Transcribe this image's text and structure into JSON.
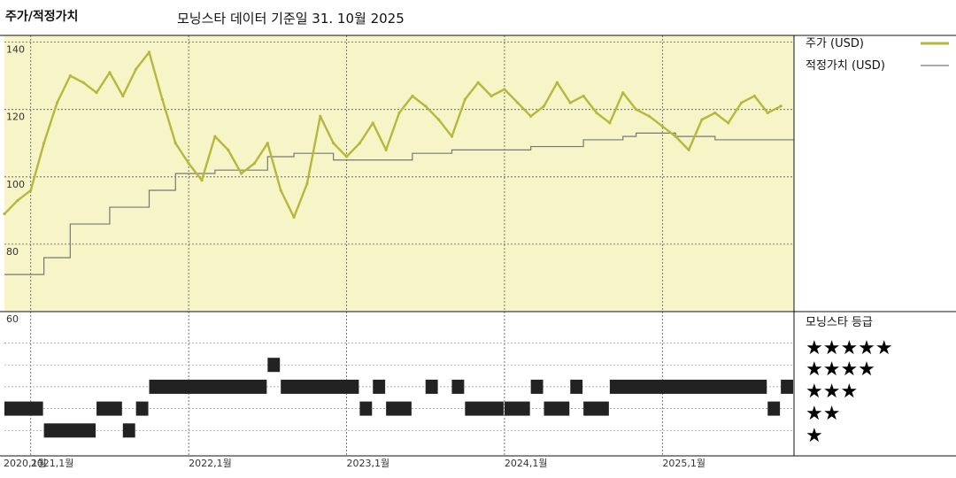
{
  "header": {
    "title": "주가/적정가치",
    "subtitle": "모닝스타 데이터 기준일 31. 10월 2025"
  },
  "legend": {
    "price_label": "주가 (USD)",
    "fair_value_label": "적정가치 (USD)",
    "rating_title": "모닝스타 등급"
  },
  "colors": {
    "price_line": "#b5b83a",
    "fair_value_line": "#777777",
    "plot_background": "#f7f4c8",
    "rating_bar": "#222222"
  },
  "rating_levels": [
    "★★★★★",
    "★★★★",
    "★★★",
    "★★",
    "★"
  ],
  "chart_data": {
    "type": "line",
    "title": "주가/적정가치",
    "subtitle": "모닝스타 데이터 기준일 31. 10월 2025",
    "x_tick_labels": [
      "2020,1월",
      "2021,1월",
      "2022,1월",
      "2023,1월",
      "2024,1월",
      "2025,1월"
    ],
    "x_tick_dates": [
      "2020-01",
      "2021-01",
      "2022-01",
      "2023-01",
      "2024-01",
      "2025-01"
    ],
    "x_range": [
      "2020-11",
      "2025-11"
    ],
    "y_ticks": [
      140,
      120,
      100,
      80,
      60
    ],
    "ylim": [
      60,
      142
    ],
    "grid": true,
    "legend_position": "right",
    "series": [
      {
        "name": "주가 (USD)",
        "x": [
          "2020-11",
          "2020-12",
          "2021-01",
          "2021-02",
          "2021-03",
          "2021-04",
          "2021-05",
          "2021-06",
          "2021-07",
          "2021-08",
          "2021-09",
          "2021-10",
          "2021-11",
          "2021-12",
          "2022-01",
          "2022-02",
          "2022-03",
          "2022-04",
          "2022-05",
          "2022-06",
          "2022-07",
          "2022-08",
          "2022-09",
          "2022-10",
          "2022-11",
          "2022-12",
          "2023-01",
          "2023-02",
          "2023-03",
          "2023-04",
          "2023-05",
          "2023-06",
          "2023-07",
          "2023-08",
          "2023-09",
          "2023-10",
          "2023-11",
          "2023-12",
          "2024-01",
          "2024-02",
          "2024-03",
          "2024-04",
          "2024-05",
          "2024-06",
          "2024-07",
          "2024-08",
          "2024-09",
          "2024-10",
          "2024-11",
          "2024-12",
          "2025-01",
          "2025-02",
          "2025-03",
          "2025-04",
          "2025-05",
          "2025-06",
          "2025-07",
          "2025-08",
          "2025-09",
          "2025-10"
        ],
        "values": [
          89,
          93,
          96,
          110,
          122,
          130,
          128,
          125,
          131,
          124,
          132,
          137,
          123,
          110,
          104,
          99,
          112,
          108,
          101,
          104,
          110,
          96,
          88,
          98,
          118,
          110,
          106,
          110,
          116,
          108,
          119,
          124,
          121,
          117,
          112,
          123,
          128,
          124,
          126,
          122,
          118,
          121,
          128,
          122,
          124,
          119,
          116,
          125,
          120,
          118,
          115,
          112,
          108,
          117,
          119,
          116,
          122,
          124,
          119,
          121
        ]
      },
      {
        "name": "적정가치 (USD)",
        "step": true,
        "x": [
          "2020-11",
          "2021-02",
          "2021-04",
          "2021-07",
          "2021-10",
          "2021-12",
          "2022-03",
          "2022-07",
          "2022-09",
          "2022-12",
          "2023-06",
          "2023-09",
          "2024-03",
          "2024-07",
          "2024-10",
          "2024-11",
          "2025-02",
          "2025-05"
        ],
        "values": [
          71,
          76,
          86,
          91,
          96,
          101,
          102,
          106,
          107,
          105,
          107,
          108,
          109,
          111,
          112,
          113,
          112,
          111
        ]
      }
    ],
    "rating_chart": {
      "type": "rating-timeline",
      "title": "모닝스타 등급",
      "levels": [
        5,
        4,
        3,
        2,
        1
      ],
      "periods": [
        {
          "start": "2020-11",
          "end": "2021-02",
          "stars": 2
        },
        {
          "start": "2021-02",
          "end": "2021-06",
          "stars": 1
        },
        {
          "start": "2021-06",
          "end": "2021-08",
          "stars": 2
        },
        {
          "start": "2021-08",
          "end": "2021-09",
          "stars": 1
        },
        {
          "start": "2021-09",
          "end": "2021-10",
          "stars": 2
        },
        {
          "start": "2021-10",
          "end": "2022-07",
          "stars": 3
        },
        {
          "start": "2022-07",
          "end": "2022-08",
          "stars": 4
        },
        {
          "start": "2022-08",
          "end": "2023-02",
          "stars": 3
        },
        {
          "start": "2023-02",
          "end": "2023-03",
          "stars": 2
        },
        {
          "start": "2023-03",
          "end": "2023-04",
          "stars": 3
        },
        {
          "start": "2023-04",
          "end": "2023-06",
          "stars": 2
        },
        {
          "start": "2023-07",
          "end": "2023-08",
          "stars": 3
        },
        {
          "start": "2023-09",
          "end": "2023-10",
          "stars": 3
        },
        {
          "start": "2023-10",
          "end": "2024-01",
          "stars": 2
        },
        {
          "start": "2024-01",
          "end": "2024-03",
          "stars": 2
        },
        {
          "start": "2024-03",
          "end": "2024-04",
          "stars": 3
        },
        {
          "start": "2024-04",
          "end": "2024-06",
          "stars": 2
        },
        {
          "start": "2024-06",
          "end": "2024-07",
          "stars": 3
        },
        {
          "start": "2024-07",
          "end": "2024-09",
          "stars": 2
        },
        {
          "start": "2024-09",
          "end": "2025-09",
          "stars": 3
        },
        {
          "start": "2025-09",
          "end": "2025-10",
          "stars": 2
        },
        {
          "start": "2025-10",
          "end": "2025-11",
          "stars": 3
        }
      ]
    }
  }
}
